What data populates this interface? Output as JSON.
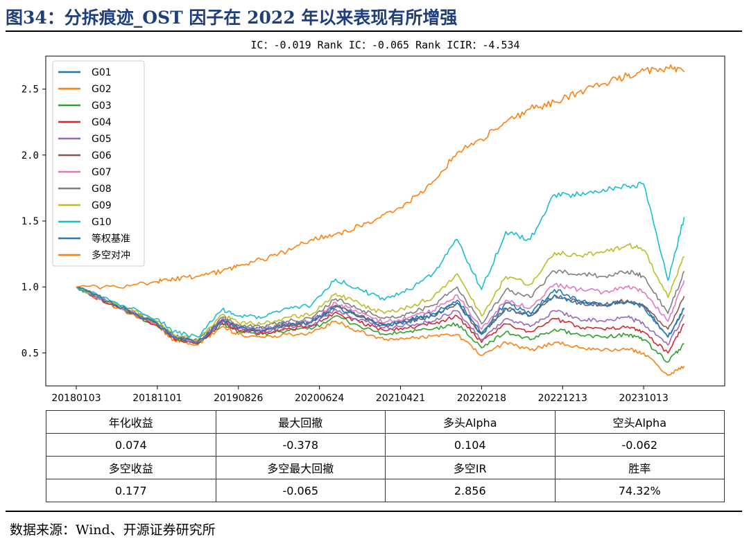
{
  "figure_title": "图34：分拆痕迹_OST 因子在 2022 年以来表现有所增强",
  "source": "数据来源：Wind、开源证券研究所",
  "chart_data": {
    "type": "line",
    "title": "IC：-0.019    Rank IC：-0.065    Rank ICIR：-4.534",
    "xlabel": "",
    "ylabel": "",
    "x_tick_labels": [
      "20180103",
      "20181101",
      "20190826",
      "20200624",
      "20210421",
      "20220218",
      "20221213",
      "20231013"
    ],
    "ylim": [
      0.25,
      2.75
    ],
    "y_ticks": [
      0.5,
      1.0,
      1.5,
      2.0,
      2.5
    ],
    "y_tick_labels": [
      "0.5",
      "1.0",
      "1.5",
      "2.0",
      "2.5"
    ],
    "legend_position": "top-left",
    "grid": false,
    "x": [
      0,
      0.5,
      1,
      1.2,
      1.5,
      1.8,
      2,
      2.3,
      2.6,
      2.9,
      3.2,
      3.5,
      3.8,
      4.1,
      4.4,
      4.7,
      5,
      5.3,
      5.6,
      5.9,
      6.2,
      6.5,
      6.8,
      7,
      7.3,
      7.5
    ],
    "series": [
      {
        "name": "G01",
        "color": "#1f77b4",
        "values": [
          1.0,
          0.86,
          0.72,
          0.62,
          0.58,
          0.75,
          0.7,
          0.68,
          0.72,
          0.74,
          0.86,
          0.78,
          0.72,
          0.75,
          0.8,
          0.9,
          0.65,
          0.88,
          0.8,
          0.98,
          0.9,
          0.86,
          0.9,
          0.86,
          0.62,
          0.84
        ]
      },
      {
        "name": "G02",
        "color": "#ff7f0e",
        "values": [
          1.0,
          0.84,
          0.7,
          0.6,
          0.56,
          0.7,
          0.64,
          0.62,
          0.64,
          0.65,
          0.74,
          0.66,
          0.6,
          0.61,
          0.63,
          0.64,
          0.48,
          0.58,
          0.52,
          0.58,
          0.54,
          0.52,
          0.53,
          0.5,
          0.33,
          0.4
        ]
      },
      {
        "name": "G03",
        "color": "#2ca02c",
        "values": [
          1.0,
          0.85,
          0.71,
          0.61,
          0.57,
          0.72,
          0.66,
          0.64,
          0.67,
          0.68,
          0.78,
          0.7,
          0.64,
          0.66,
          0.68,
          0.72,
          0.54,
          0.66,
          0.6,
          0.68,
          0.64,
          0.62,
          0.64,
          0.6,
          0.43,
          0.57
        ]
      },
      {
        "name": "G04",
        "color": "#d62728",
        "values": [
          1.0,
          0.85,
          0.71,
          0.61,
          0.57,
          0.73,
          0.67,
          0.65,
          0.68,
          0.7,
          0.81,
          0.73,
          0.67,
          0.69,
          0.72,
          0.78,
          0.58,
          0.72,
          0.66,
          0.76,
          0.7,
          0.68,
          0.7,
          0.66,
          0.5,
          0.72
        ]
      },
      {
        "name": "G05",
        "color": "#9467bd",
        "values": [
          1.0,
          0.86,
          0.72,
          0.62,
          0.58,
          0.74,
          0.68,
          0.66,
          0.7,
          0.71,
          0.83,
          0.75,
          0.69,
          0.71,
          0.74,
          0.82,
          0.6,
          0.76,
          0.7,
          0.82,
          0.76,
          0.74,
          0.77,
          0.72,
          0.56,
          0.79
        ]
      },
      {
        "name": "G06",
        "color": "#8c564b",
        "values": [
          1.0,
          0.86,
          0.72,
          0.62,
          0.58,
          0.75,
          0.69,
          0.67,
          0.71,
          0.73,
          0.86,
          0.78,
          0.71,
          0.74,
          0.78,
          0.88,
          0.64,
          0.84,
          0.78,
          0.94,
          0.88,
          0.86,
          0.9,
          0.86,
          0.68,
          0.93
        ]
      },
      {
        "name": "G07",
        "color": "#e377c2",
        "values": [
          1.0,
          0.86,
          0.72,
          0.62,
          0.58,
          0.76,
          0.7,
          0.68,
          0.72,
          0.74,
          0.88,
          0.8,
          0.73,
          0.77,
          0.82,
          0.94,
          0.68,
          0.9,
          0.84,
          1.02,
          0.98,
          0.96,
          1.0,
          0.96,
          0.74,
          1.05
        ]
      },
      {
        "name": "G08",
        "color": "#7f7f7f",
        "values": [
          1.0,
          0.86,
          0.73,
          0.63,
          0.59,
          0.77,
          0.71,
          0.7,
          0.74,
          0.76,
          0.91,
          0.83,
          0.76,
          0.8,
          0.86,
          1.0,
          0.72,
          0.98,
          0.92,
          1.12,
          1.1,
          1.08,
          1.12,
          1.08,
          0.8,
          1.12
        ]
      },
      {
        "name": "G09",
        "color": "#bcbd22",
        "values": [
          1.0,
          0.87,
          0.74,
          0.64,
          0.6,
          0.79,
          0.73,
          0.72,
          0.77,
          0.79,
          0.95,
          0.87,
          0.8,
          0.85,
          0.92,
          1.1,
          0.78,
          1.08,
          1.02,
          1.26,
          1.24,
          1.26,
          1.32,
          1.28,
          0.92,
          1.23
        ]
      },
      {
        "name": "G10",
        "color": "#17becf",
        "values": [
          1.0,
          0.88,
          0.76,
          0.66,
          0.62,
          0.83,
          0.78,
          0.77,
          0.84,
          0.86,
          1.06,
          0.98,
          0.9,
          0.98,
          1.1,
          1.36,
          0.98,
          1.42,
          1.36,
          1.7,
          1.7,
          1.74,
          1.76,
          1.78,
          1.05,
          1.53
        ]
      },
      {
        "name": "等权基准",
        "color": "#2878b5",
        "values": [
          1.0,
          0.86,
          0.72,
          0.62,
          0.58,
          0.75,
          0.69,
          0.67,
          0.71,
          0.73,
          0.85,
          0.77,
          0.71,
          0.74,
          0.78,
          0.88,
          0.64,
          0.84,
          0.78,
          0.94,
          0.88,
          0.86,
          0.89,
          0.85,
          0.62,
          0.84
        ]
      },
      {
        "name": "多空对冲",
        "color": "#ff7f0e",
        "values": [
          1.0,
          1.0,
          1.04,
          1.06,
          1.08,
          1.12,
          1.16,
          1.21,
          1.27,
          1.36,
          1.4,
          1.46,
          1.55,
          1.64,
          1.8,
          2.02,
          2.12,
          2.25,
          2.35,
          2.4,
          2.48,
          2.54,
          2.6,
          2.64,
          2.66,
          2.63
        ]
      }
    ]
  },
  "metrics_table": {
    "rows": [
      [
        "年化收益",
        "最大回撤",
        "多头Alpha",
        "空头Alpha"
      ],
      [
        "0.074",
        "-0.378",
        "0.104",
        "-0.062"
      ],
      [
        "多空收益",
        "多空最大回撤",
        "多空IR",
        "胜率"
      ],
      [
        "0.177",
        "-0.065",
        "2.856",
        "74.32%"
      ]
    ]
  }
}
